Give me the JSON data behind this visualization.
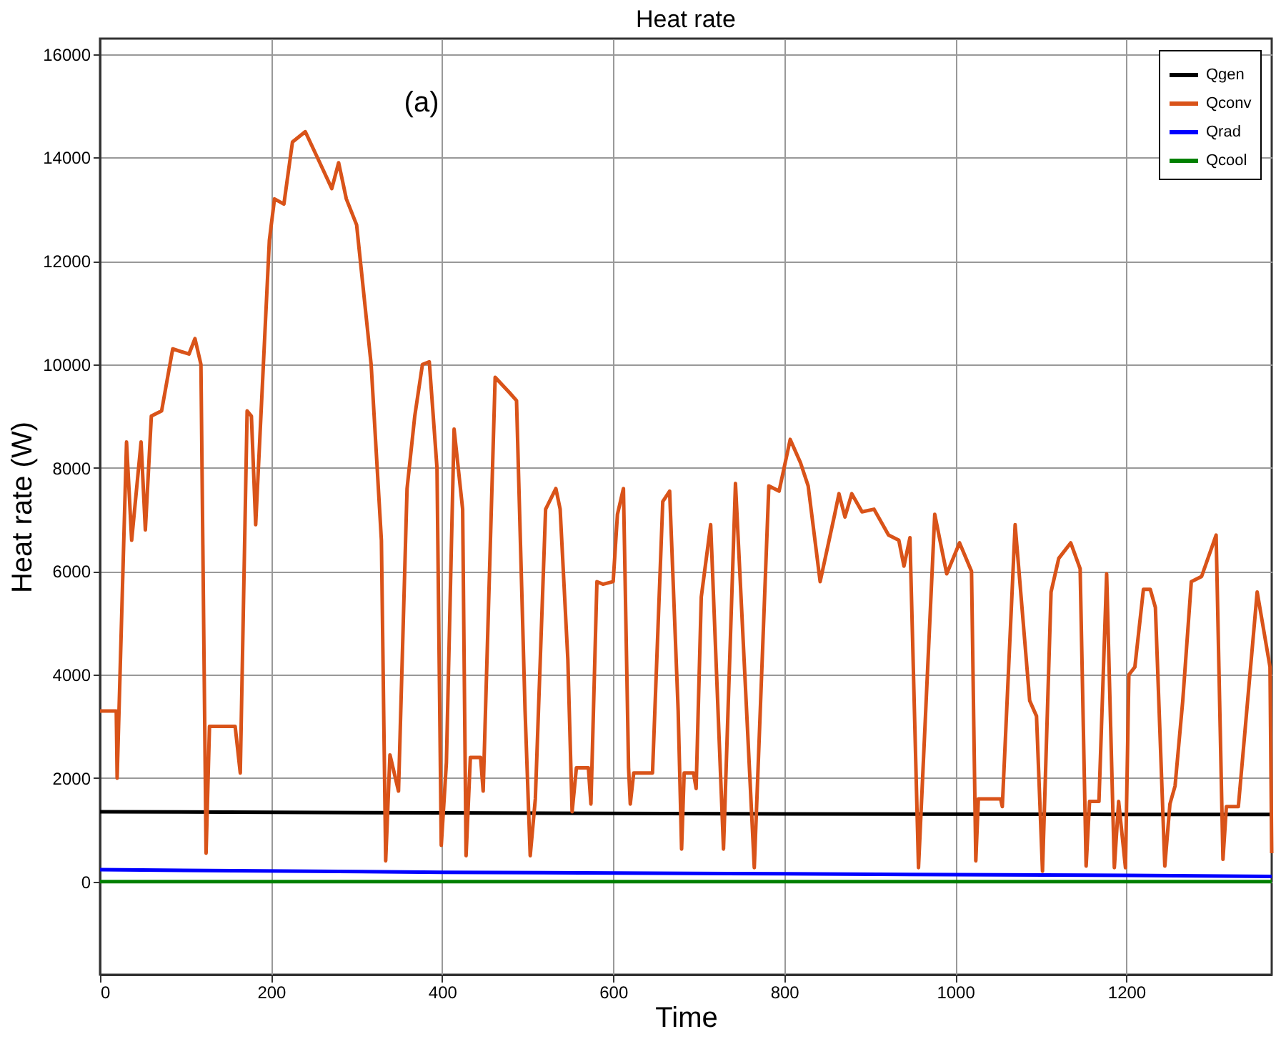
{
  "chart_data": {
    "type": "line",
    "title": "Heat rate",
    "xlabel": "Time",
    "ylabel": "Heat rate (W)",
    "annotations": [
      "(a)"
    ],
    "xlim": [
      0,
      1370
    ],
    "xticks": [
      0,
      200,
      400,
      600,
      800,
      1000,
      1200
    ],
    "ylim": [
      -1800,
      16300
    ],
    "yticks": [
      0,
      2000,
      4000,
      6000,
      8000,
      10000,
      12000,
      14000,
      16000
    ],
    "grid": true,
    "legend": "top right",
    "line_style": "solid",
    "marker": "none",
    "series": [
      {
        "name": "Qgen",
        "color": "#000000",
        "x": [
          0,
          400,
          800,
          1200,
          1370
        ],
        "values": [
          1350,
          1330,
          1310,
          1300,
          1300
        ]
      },
      {
        "name": "Qconv",
        "color": "#d95319",
        "x": [
          0,
          19,
          20,
          31,
          37,
          48,
          53,
          60,
          72,
          85,
          104,
          111,
          118,
          124,
          128,
          158,
          164,
          172,
          177,
          182,
          198,
          204,
          215,
          225,
          240,
          257,
          271,
          279,
          288,
          300,
          317,
          329,
          334,
          339,
          349,
          359,
          368,
          377,
          385,
          394,
          399,
          405,
          414,
          424,
          428,
          433,
          445,
          448,
          462,
          479,
          487,
          497,
          503,
          509,
          521,
          533,
          538,
          547,
          552,
          557,
          571,
          574,
          581,
          588,
          600,
          605,
          612,
          618,
          620,
          624,
          646,
          658,
          666,
          676,
          680,
          683,
          694,
          697,
          703,
          714,
          729,
          743,
          765,
          782,
          794,
          807,
          819,
          828,
          842,
          859,
          864,
          871,
          879,
          891,
          905,
          922,
          934,
          940,
          947,
          957,
          976,
          990,
          1005,
          1019,
          1024,
          1027,
          1053,
          1055,
          1070,
          1087,
          1095,
          1102,
          1112,
          1121,
          1135,
          1146,
          1153,
          1157,
          1168,
          1177,
          1186,
          1191,
          1199,
          1203,
          1210,
          1220,
          1228,
          1234,
          1245,
          1251,
          1257,
          1266,
          1276,
          1288,
          1305,
          1313,
          1317,
          1331,
          1353,
          1368,
          1370
        ],
        "values": [
          3300,
          3300,
          2000,
          8500,
          6600,
          8500,
          6800,
          9000,
          9100,
          10300,
          10200,
          10500,
          10000,
          550,
          3000,
          3000,
          2100,
          9100,
          9000,
          6900,
          12400,
          13200,
          13100,
          14300,
          14500,
          13900,
          13400,
          13900,
          13200,
          12700,
          10000,
          6600,
          400,
          2450,
          1750,
          7600,
          9000,
          10000,
          10050,
          8000,
          700,
          2300,
          8750,
          7200,
          500,
          2400,
          2400,
          1750,
          9750,
          9450,
          9300,
          3300,
          500,
          1600,
          7200,
          7600,
          7200,
          4300,
          1350,
          2200,
          2200,
          1500,
          5800,
          5750,
          5800,
          7100,
          7600,
          2200,
          1500,
          2100,
          2100,
          7350,
          7550,
          3300,
          630,
          2100,
          2100,
          1800,
          5500,
          6900,
          630,
          7700,
          270,
          7650,
          7550,
          8550,
          8100,
          7650,
          5800,
          7100,
          7500,
          7050,
          7500,
          7150,
          7200,
          6700,
          6600,
          6100,
          6650,
          270,
          7100,
          5950,
          6550,
          6000,
          400,
          1600,
          1600,
          1450,
          6900,
          3500,
          3200,
          200,
          5600,
          6250,
          6550,
          6050,
          300,
          1550,
          1550,
          5950,
          270,
          1550,
          270,
          4000,
          4150,
          5650,
          5650,
          5300,
          300,
          1500,
          1850,
          3500,
          5800,
          5900,
          6700,
          430,
          1450,
          1450,
          5600,
          4150,
          550
        ]
      },
      {
        "name": "Qrad",
        "color": "#0000ff",
        "x": [
          0,
          400,
          800,
          1200,
          1370
        ],
        "values": [
          230,
          180,
          150,
          120,
          100
        ]
      },
      {
        "name": "Qcool",
        "color": "#008000",
        "x": [
          0,
          1370
        ],
        "values": [
          0,
          0
        ]
      }
    ]
  }
}
